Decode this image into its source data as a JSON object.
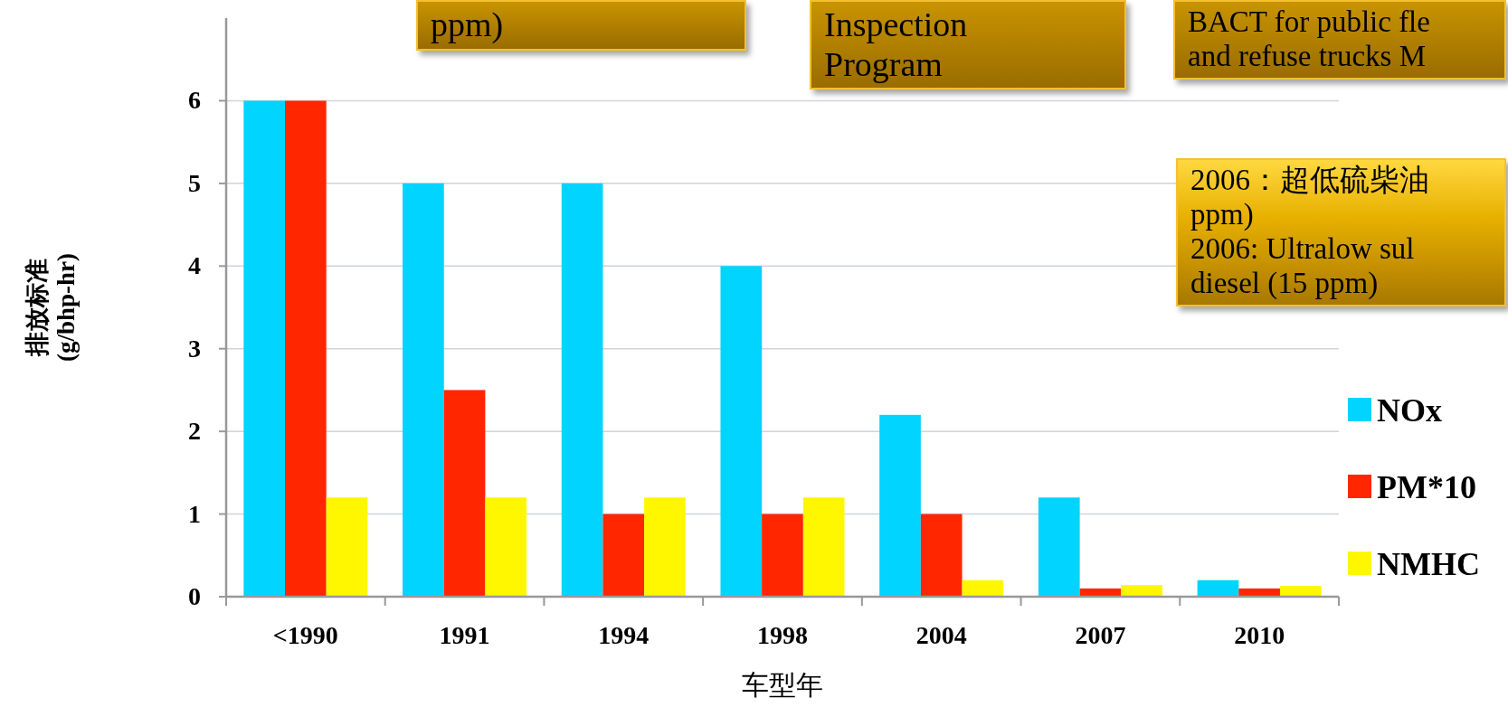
{
  "chart_data": {
    "type": "bar",
    "xlabel": "车型年",
    "ylabel": "排放标准\n(g/bhp-hr)",
    "categories": [
      "<1990",
      "1991",
      "1994",
      "1998",
      "2004",
      "2007",
      "2010"
    ],
    "series": [
      {
        "name": "NOx",
        "color": "#00d4ff",
        "values": [
          6,
          5,
          5,
          4,
          2.2,
          1.2,
          0.2
        ]
      },
      {
        "name": "PM*10",
        "color": "#ff2600",
        "values": [
          6,
          2.5,
          1,
          1,
          1,
          0.1,
          0.1
        ]
      },
      {
        "name": "NMHC",
        "color": "#fff700",
        "values": [
          1.2,
          1.2,
          1.2,
          1.2,
          0.2,
          0.14,
          0.13
        ]
      }
    ],
    "ylim": [
      0,
      7
    ],
    "yticks": [
      0,
      1,
      2,
      3,
      4,
      5,
      6
    ],
    "grid": "y",
    "legend": "right",
    "annotations": [
      "ppm)",
      "Inspection\nProgram",
      "BACT for public fle\nand refuse trucks M",
      "2006：超低硫柴油\nppm)\n2006: Ultralow sul\ndiesel (15 ppm)"
    ]
  }
}
